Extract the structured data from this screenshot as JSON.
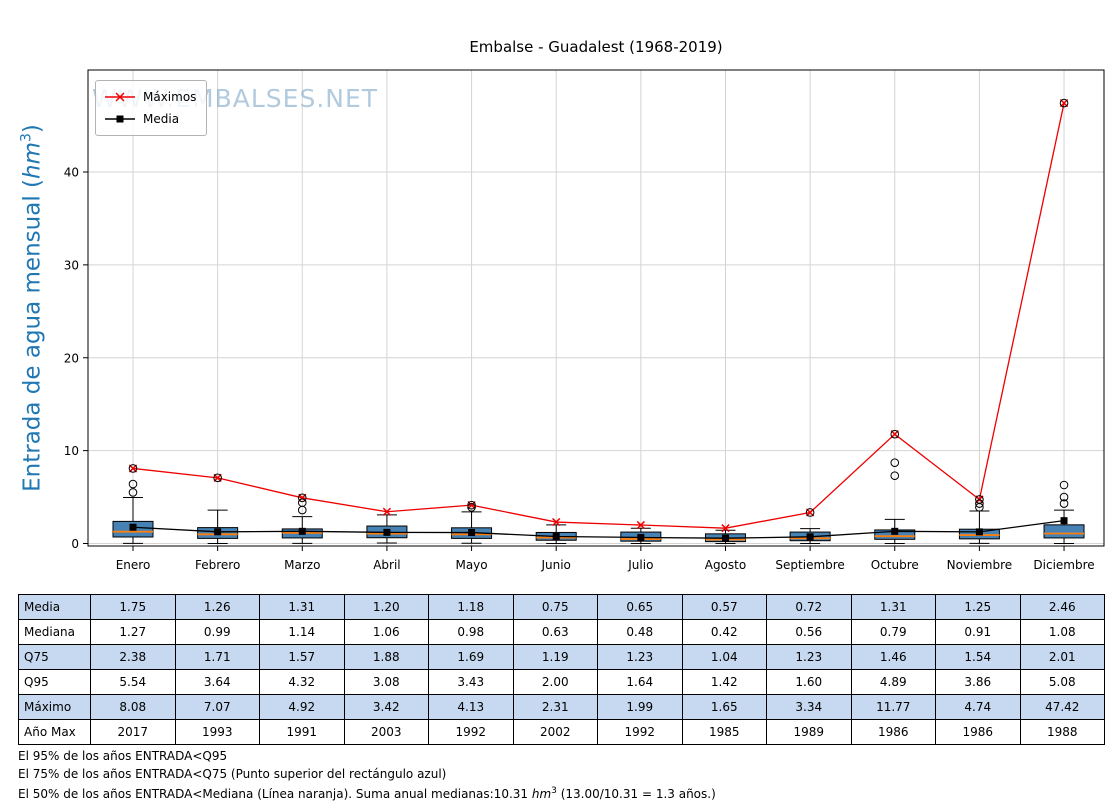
{
  "title": "Embalse - Guadalest (1968-2019)",
  "watermark": "WWW.EMBALSES.NET",
  "ylabel": {
    "prefix": "Entrada de agua mensual (",
    "unit": "hm",
    "sup": "3",
    "suffix": ")"
  },
  "legend": {
    "maximos": "Máximos",
    "media": "Media"
  },
  "chart_data": {
    "type": "boxplot+line",
    "title": "Embalse - Guadalest (1968-2019)",
    "xlabel": "",
    "ylabel": "Entrada de agua mensual (hm3)",
    "categories": [
      "Enero",
      "Febrero",
      "Marzo",
      "Abril",
      "Mayo",
      "Junio",
      "Julio",
      "Agosto",
      "Septiembre",
      "Octubre",
      "Noviembre",
      "Diciembre"
    ],
    "yticks": [
      0,
      10,
      20,
      30,
      40
    ],
    "ylim": [
      -1.5,
      51
    ],
    "grid": true,
    "legend_position": "upper-left",
    "box_fill": "#4682b4",
    "median_color": "#ff7f0e",
    "series": [
      {
        "name": "Máximos",
        "color": "#ee0000",
        "marker": "x",
        "values": [
          8.08,
          7.07,
          4.92,
          3.42,
          4.13,
          2.31,
          1.99,
          1.65,
          3.34,
          11.77,
          4.74,
          47.42
        ]
      },
      {
        "name": "Media",
        "color": "#000000",
        "marker": "square",
        "values": [
          1.75,
          1.26,
          1.31,
          1.2,
          1.18,
          0.75,
          0.65,
          0.57,
          0.72,
          1.31,
          1.25,
          2.46
        ]
      }
    ],
    "boxes": [
      {
        "q25": 0.7,
        "median": 1.27,
        "q75": 2.38,
        "whisker_low": 0.02,
        "whisker_high": 4.95,
        "outliers": [
          5.5,
          6.4,
          8.08
        ]
      },
      {
        "q25": 0.55,
        "median": 0.99,
        "q75": 1.71,
        "whisker_low": 0.0,
        "whisker_high": 3.6,
        "outliers": [
          7.07
        ]
      },
      {
        "q25": 0.6,
        "median": 1.14,
        "q75": 1.57,
        "whisker_low": 0.02,
        "whisker_high": 2.9,
        "outliers": [
          3.6,
          4.4,
          4.92
        ]
      },
      {
        "q25": 0.62,
        "median": 1.06,
        "q75": 1.88,
        "whisker_low": 0.05,
        "whisker_high": 3.08,
        "outliers": []
      },
      {
        "q25": 0.55,
        "median": 0.98,
        "q75": 1.69,
        "whisker_low": 0.03,
        "whisker_high": 3.4,
        "outliers": [
          3.9,
          4.13
        ]
      },
      {
        "q25": 0.35,
        "median": 0.63,
        "q75": 1.19,
        "whisker_low": 0.0,
        "whisker_high": 2.0,
        "outliers": []
      },
      {
        "q25": 0.25,
        "median": 0.48,
        "q75": 1.23,
        "whisker_low": 0.0,
        "whisker_high": 1.64,
        "outliers": []
      },
      {
        "q25": 0.2,
        "median": 0.42,
        "q75": 1.04,
        "whisker_low": 0.0,
        "whisker_high": 1.42,
        "outliers": []
      },
      {
        "q25": 0.3,
        "median": 0.56,
        "q75": 1.23,
        "whisker_low": 0.0,
        "whisker_high": 1.6,
        "outliers": [
          3.34
        ]
      },
      {
        "q25": 0.45,
        "median": 0.79,
        "q75": 1.46,
        "whisker_low": 0.0,
        "whisker_high": 2.6,
        "outliers": [
          7.3,
          8.7,
          11.77
        ]
      },
      {
        "q25": 0.5,
        "median": 0.91,
        "q75": 1.54,
        "whisker_low": 0.02,
        "whisker_high": 3.5,
        "outliers": [
          3.9,
          4.3,
          4.74
        ]
      },
      {
        "q25": 0.6,
        "median": 1.08,
        "q75": 2.01,
        "whisker_low": 0.0,
        "whisker_high": 3.6,
        "outliers": [
          4.3,
          5.0,
          6.3,
          47.42
        ]
      }
    ]
  },
  "table": {
    "shade_color": "#c6d9f0",
    "row_labels": [
      "Media",
      "Mediana",
      "Q75",
      "Q95",
      "Máximo",
      "Año Max"
    ],
    "columns": [
      "Enero",
      "Febrero",
      "Marzo",
      "Abril",
      "Mayo",
      "Junio",
      "Julio",
      "Agosto",
      "Septiembre",
      "Octubre",
      "Noviembre",
      "Diciembre"
    ],
    "rows": [
      [
        "1.75",
        "1.26",
        "1.31",
        "1.20",
        "1.18",
        "0.75",
        "0.65",
        "0.57",
        "0.72",
        "1.31",
        "1.25",
        "2.46"
      ],
      [
        "1.27",
        "0.99",
        "1.14",
        "1.06",
        "0.98",
        "0.63",
        "0.48",
        "0.42",
        "0.56",
        "0.79",
        "0.91",
        "1.08"
      ],
      [
        "2.38",
        "1.71",
        "1.57",
        "1.88",
        "1.69",
        "1.19",
        "1.23",
        "1.04",
        "1.23",
        "1.46",
        "1.54",
        "2.01"
      ],
      [
        "5.54",
        "3.64",
        "4.32",
        "3.08",
        "3.43",
        "2.00",
        "1.64",
        "1.42",
        "1.60",
        "4.89",
        "3.86",
        "5.08"
      ],
      [
        "8.08",
        "7.07",
        "4.92",
        "3.42",
        "4.13",
        "2.31",
        "1.99",
        "1.65",
        "3.34",
        "11.77",
        "4.74",
        "47.42"
      ],
      [
        "2017",
        "1993",
        "1991",
        "2003",
        "1992",
        "2002",
        "1992",
        "1985",
        "1989",
        "1986",
        "1986",
        "1988"
      ]
    ]
  },
  "footnotes": {
    "line1": "El 95% de los años ENTRADA<Q95",
    "line2": "El 75% de los años ENTRADA<Q75 (Punto superior del rectángulo azul)",
    "line3_pre": " El 50% de los años ENTRADA<Mediana (Línea naranja). Suma anual medianas:10.31 ",
    "line3_unit": "hm",
    "line3_sup": "3",
    "line3_post": " (13.00/10.31 = 1.3 años.)"
  }
}
